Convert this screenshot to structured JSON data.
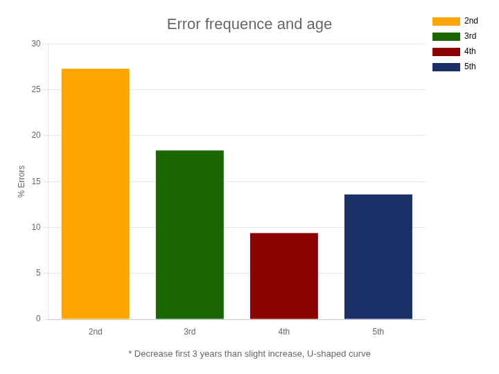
{
  "chart_data": {
    "type": "bar",
    "title": "Error frequence and age",
    "subtitle": "* Decrease first 3 years than slight increase, U-shaped curve",
    "categories": [
      "2nd",
      "3rd",
      "4th",
      "5th"
    ],
    "values": [
      27.3,
      18.4,
      9.4,
      13.6
    ],
    "colors": [
      "#FFA500",
      "#1a6600",
      "#8B0000",
      "#1a3066"
    ],
    "ylabel": "% Errors",
    "ylim": [
      0,
      30
    ],
    "yticks": [
      0,
      5,
      10,
      15,
      20,
      25,
      30
    ],
    "grid": true,
    "legend": "right"
  }
}
